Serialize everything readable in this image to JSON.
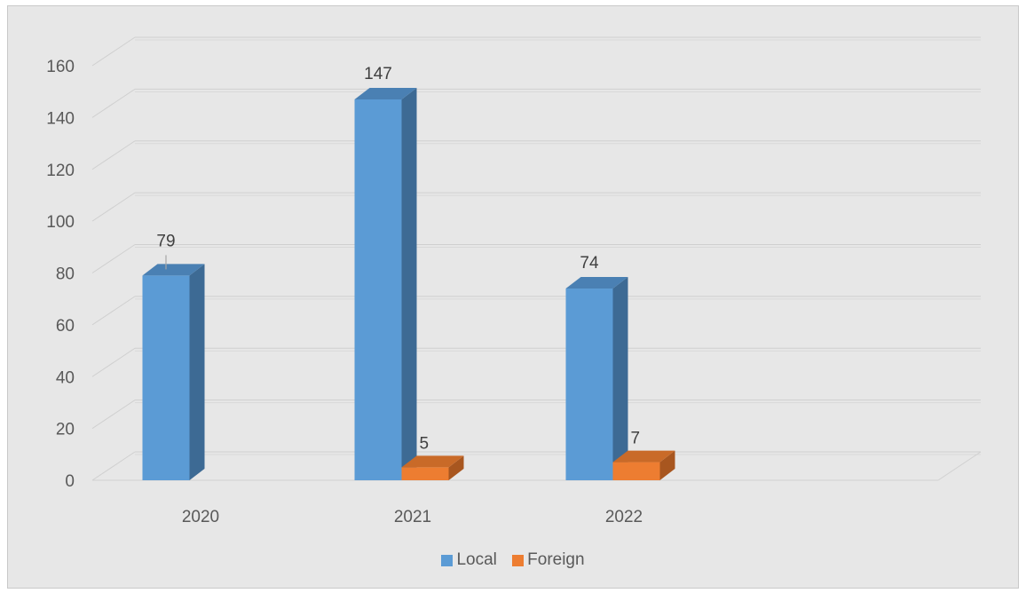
{
  "chart_data": {
    "type": "bar",
    "style": "3d-clustered-column",
    "categories": [
      "2020",
      "2021",
      "2022"
    ],
    "series": [
      {
        "name": "Local",
        "values": [
          79,
          147,
          74
        ],
        "color": "#5b9bd5",
        "side_color": "#3d6a94",
        "top_color": "#4a80b3"
      },
      {
        "name": "Foreign",
        "values": [
          0,
          5,
          7
        ],
        "color": "#ed7d31",
        "side_color": "#a8561f",
        "top_color": "#c96a28"
      }
    ],
    "data_labels": [
      [
        "79",
        "147",
        "74"
      ],
      [
        null,
        "5",
        "7"
      ]
    ],
    "y_ticks": [
      "0",
      "20",
      "40",
      "60",
      "80",
      "100",
      "120",
      "140",
      "160"
    ],
    "ylim": [
      0,
      160
    ],
    "grid": true,
    "legend_position": "bottom",
    "background_color": "#e7e7e7"
  }
}
